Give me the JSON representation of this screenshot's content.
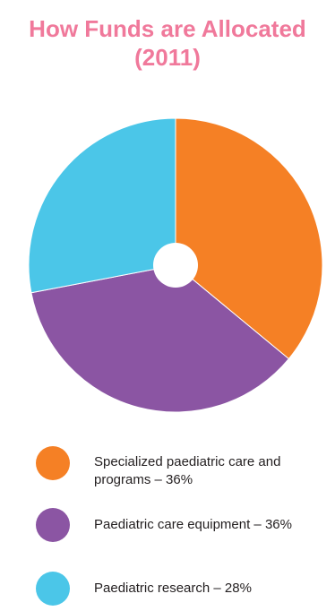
{
  "chart_data": {
    "type": "pie",
    "title_lines": [
      "How Funds are Allocated",
      "(2011)"
    ],
    "donut_hole": true,
    "slices": [
      {
        "label": "Specialized paediatric care and programs – 36%",
        "value": 36,
        "color": "#f58025"
      },
      {
        "label": "Paediatric care equipment – 36%",
        "value": 36,
        "color": "#8b55a3"
      },
      {
        "label": "Paediatric research – 28%",
        "value": 28,
        "color": "#4bc6e8"
      }
    ],
    "legend_position": "bottom"
  }
}
